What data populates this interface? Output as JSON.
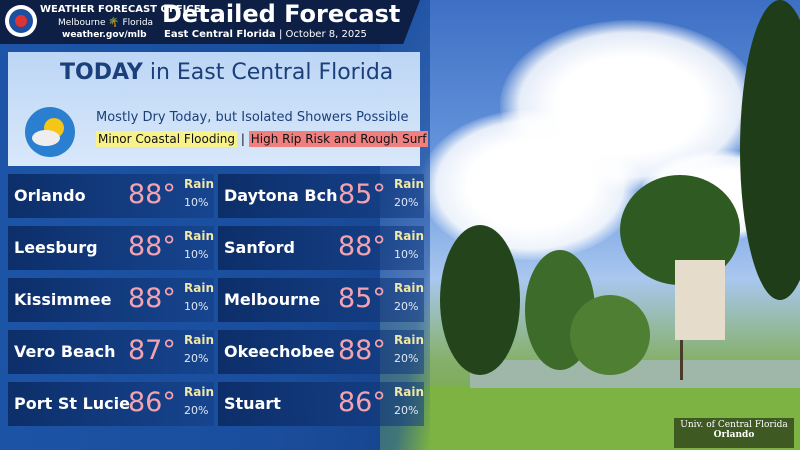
{
  "header": {
    "office": "WEATHER FORECAST OFFICE",
    "city": "Melbourne",
    "state": "Florida",
    "url": "weather.gov/mlb",
    "title": "Detailed Forecast",
    "region": "East Central Florida",
    "separator": "|",
    "date": "October 8, 2025"
  },
  "today": {
    "heading": "TODAY",
    "heading_rest": "in East Central Florida",
    "summary": "Mostly Dry Today, but Isolated Showers Possible",
    "hazards": [
      "Minor Coastal Flooding",
      "High Rip Risk and Rough Surf"
    ],
    "hazard_separator": "|"
  },
  "cities": [
    {
      "name": "Orlando",
      "temp": "88°",
      "rain": "Rain",
      "pop": "10%"
    },
    {
      "name": "Daytona Bch",
      "temp": "85°",
      "rain": "Rain",
      "pop": "20%"
    },
    {
      "name": "Leesburg",
      "temp": "88°",
      "rain": "Rain",
      "pop": "10%"
    },
    {
      "name": "Sanford",
      "temp": "88°",
      "rain": "Rain",
      "pop": "10%"
    },
    {
      "name": "Kissimmee",
      "temp": "88°",
      "rain": "Rain",
      "pop": "10%"
    },
    {
      "name": "Melbourne",
      "temp": "85°",
      "rain": "Rain",
      "pop": "20%"
    },
    {
      "name": "Vero Beach",
      "temp": "87°",
      "rain": "Rain",
      "pop": "20%"
    },
    {
      "name": "Okeechobee",
      "temp": "88°",
      "rain": "Rain",
      "pop": "20%"
    },
    {
      "name": "Port St Lucie",
      "temp": "86°",
      "rain": "Rain",
      "pop": "20%"
    },
    {
      "name": "Stuart",
      "temp": "86°",
      "rain": "Rain",
      "pop": "20%"
    }
  ],
  "photo_credit": {
    "line1": "Univ. of Central Florida",
    "line2": "Orlando"
  }
}
